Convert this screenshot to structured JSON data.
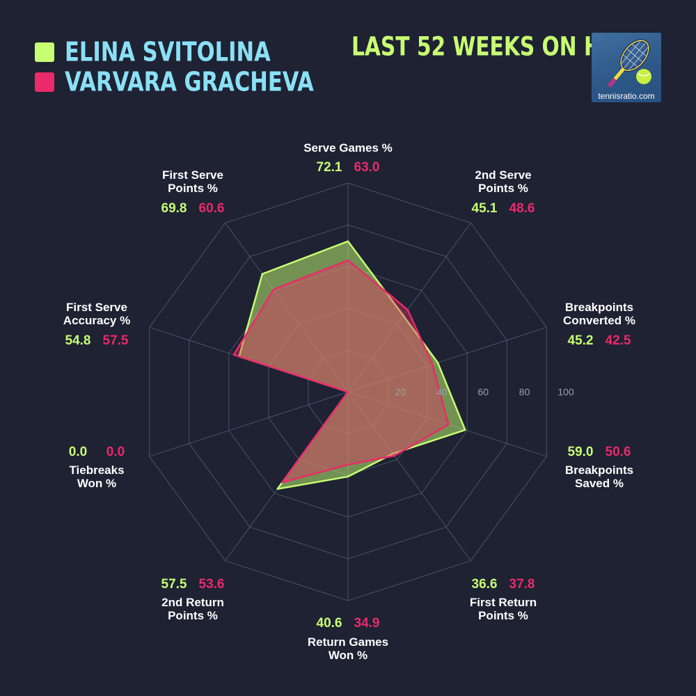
{
  "legend": [
    {
      "name": "ELINA SVITOLINA",
      "color": "#c8ff72"
    },
    {
      "name": "VARVARA GRACHEVA",
      "color": "#ea2a6a"
    }
  ],
  "period_title": "LAST 52 WEEKS ON HARD",
  "logo": {
    "text": "tennisratio.com",
    "icon": "tennis-racket-ball-icon"
  },
  "chart_data": {
    "type": "radar",
    "rmax": 100,
    "ring_ticks": [
      20,
      40,
      60,
      80,
      100
    ],
    "categories": [
      [
        "Serve Games %"
      ],
      [
        "2nd Serve",
        "Points %"
      ],
      [
        "Breakpoints",
        "Converted %"
      ],
      [
        "Breakpoints",
        "Saved %"
      ],
      [
        "First Return",
        "Points %"
      ],
      [
        "Return Games",
        "Won %"
      ],
      [
        "2nd Return",
        "Points %"
      ],
      [
        "Tiebreaks",
        "Won %"
      ],
      [
        "First Serve",
        "Accuracy %"
      ],
      [
        "First Serve",
        "Points %"
      ]
    ],
    "series": [
      {
        "name": "ELINA SVITOLINA",
        "color": "#c8ff72",
        "values": [
          72.1,
          45.1,
          45.2,
          59.0,
          36.6,
          40.6,
          57.5,
          0.0,
          54.8,
          69.8
        ],
        "labels": [
          "72.1",
          "45.1",
          "45.2",
          "59.0",
          "36.6",
          "40.6",
          "57.5",
          "0.0",
          "54.8",
          "69.8"
        ]
      },
      {
        "name": "VARVARA GRACHEVA",
        "color": "#ea2a6a",
        "values": [
          63.0,
          48.6,
          42.5,
          50.6,
          37.8,
          34.9,
          53.6,
          0.0,
          57.5,
          60.6
        ],
        "labels": [
          "63.0",
          "48.6",
          "42.5",
          "50.6",
          "37.8",
          "34.9",
          "53.6",
          "0.0",
          "57.5",
          "60.6"
        ]
      }
    ]
  }
}
